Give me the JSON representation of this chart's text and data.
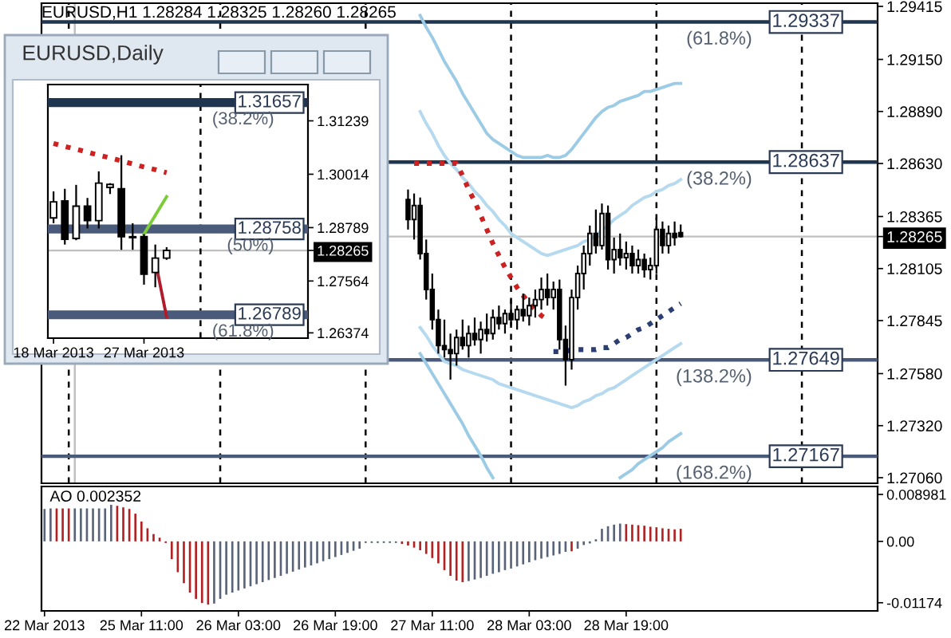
{
  "chart_data": [
    {
      "type": "candlestick",
      "title": "EURUSD,H1 1.28284 1.28325 1.28260 1.28265",
      "tick_labels": "y",
      "ylim": [
        1.27032,
        1.29431
      ],
      "yticks": [
        1.29415,
        {
          "value": 1.2915,
          "label": "1.29150"
        },
        {
          "value": 1.2889,
          "label": "1.28890"
        },
        {
          "value": 1.2863,
          "label": "1.28630"
        },
        1.28365,
        1.28265,
        1.28105,
        1.27845,
        {
          "value": 1.2758,
          "label": "1.27580"
        },
        {
          "value": 1.2732,
          "label": "1.27320"
        },
        {
          "value": 1.2706,
          "label": "1.27060"
        }
      ],
      "categories": [
        null,
        null,
        null,
        null,
        null,
        null,
        null,
        null,
        null,
        null,
        null,
        null,
        null,
        null,
        null,
        null,
        null,
        null,
        null,
        null,
        null,
        null,
        null,
        null,
        null,
        null,
        null,
        null,
        null,
        null,
        null,
        null,
        null,
        null,
        null,
        null,
        null,
        null,
        null,
        null,
        null,
        null,
        null,
        null,
        null,
        null,
        null,
        null,
        null,
        null,
        null,
        null,
        null,
        null,
        null,
        null,
        null,
        null,
        null,
        null,
        null,
        null,
        null,
        null,
        null,
        null,
        null,
        null,
        null,
        null,
        null,
        null,
        null,
        null,
        null,
        null,
        null,
        null,
        null,
        null,
        null,
        null,
        null,
        null,
        null,
        null,
        null,
        null,
        null,
        null,
        null,
        null,
        null,
        null,
        null,
        null,
        null,
        null,
        null,
        null,
        null,
        null,
        null,
        null,
        null,
        null,
        null,
        null,
        null,
        null,
        null,
        null,
        null,
        null,
        null,
        null,
        null,
        null,
        null,
        null,
        null,
        null,
        null,
        null,
        null,
        null,
        null,
        null,
        null,
        null,
        null,
        null,
        null,
        null,
        null,
        null,
        null,
        null
      ],
      "ohlc": [
        null,
        null,
        null,
        null,
        null,
        null,
        null,
        null,
        null,
        null,
        null,
        null,
        null,
        null,
        null,
        null,
        null,
        null,
        null,
        null,
        null,
        null,
        null,
        null,
        null,
        null,
        null,
        null,
        null,
        null,
        null,
        null,
        null,
        null,
        null,
        null,
        null,
        null,
        null,
        null,
        null,
        null,
        null,
        null,
        null,
        null,
        null,
        null,
        null,
        null,
        null,
        null,
        null,
        null,
        null,
        null,
        null,
        null,
        null,
        null,
        [
          1.2845,
          1.285,
          1.283,
          1.2835
        ],
        [
          1.2835,
          1.2848,
          1.2825,
          1.2842
        ],
        [
          1.2842,
          1.2846,
          1.2815,
          1.2818
        ],
        [
          1.2818,
          1.2825,
          1.2795,
          1.28
        ],
        [
          1.28,
          1.2808,
          1.278,
          1.2785
        ],
        [
          1.2785,
          1.279,
          1.2768,
          1.2772
        ],
        [
          1.2772,
          1.2785,
          1.2766,
          1.277
        ],
        [
          1.277,
          1.2778,
          1.2755,
          1.2768
        ],
        [
          1.2768,
          1.278,
          1.2762,
          1.2776
        ],
        [
          1.2776,
          1.2785,
          1.277,
          1.2772
        ],
        [
          1.2772,
          1.2782,
          1.2766,
          1.2778
        ],
        [
          1.2778,
          1.2786,
          1.2772,
          1.2775
        ],
        [
          1.2775,
          1.2784,
          1.2768,
          1.278
        ],
        [
          1.278,
          1.2788,
          1.2774,
          1.2778
        ],
        [
          1.2778,
          1.279,
          1.2775,
          1.2786
        ],
        [
          1.2786,
          1.2792,
          1.278,
          1.2783
        ],
        [
          1.2783,
          1.279,
          1.2778,
          1.2788
        ],
        [
          1.2788,
          1.2795,
          1.2782,
          1.2785
        ],
        [
          1.2785,
          1.2792,
          1.278,
          1.279
        ],
        [
          1.279,
          1.2798,
          1.2784,
          1.2787
        ],
        [
          1.2787,
          1.2796,
          1.2782,
          1.2792
        ],
        [
          1.2792,
          1.28,
          1.2786,
          1.2795
        ],
        [
          1.2795,
          1.2806,
          1.279,
          1.28
        ],
        [
          1.28,
          1.2808,
          1.2792,
          1.2796
        ],
        [
          1.2796,
          1.2804,
          1.279,
          1.28
        ],
        [
          1.28,
          1.2805,
          1.277,
          1.2775
        ],
        [
          1.2775,
          1.2782,
          1.2752,
          1.2765
        ],
        [
          1.2765,
          1.28,
          1.276,
          1.2796
        ],
        [
          1.2796,
          1.2812,
          1.279,
          1.2808
        ],
        [
          1.2808,
          1.2822,
          1.28,
          1.2818
        ],
        [
          1.2818,
          1.2832,
          1.2812,
          1.2828
        ],
        [
          1.2828,
          1.284,
          1.2818,
          1.2822
        ],
        [
          1.2822,
          1.2843,
          1.282,
          1.2838
        ],
        [
          1.2838,
          1.2842,
          1.281,
          1.2815
        ],
        [
          1.2815,
          1.2826,
          1.2808,
          1.282
        ],
        [
          1.282,
          1.2828,
          1.2812,
          1.2816
        ],
        [
          1.2816,
          1.2824,
          1.281,
          1.2818
        ],
        [
          1.2818,
          1.2822,
          1.2808,
          1.2812
        ],
        [
          1.2812,
          1.282,
          1.2808,
          1.2815
        ],
        [
          1.2815,
          1.2818,
          1.2806,
          1.281
        ],
        [
          1.281,
          1.2816,
          1.2805,
          1.2812
        ],
        [
          1.2812,
          1.2836,
          1.2808,
          1.283
        ],
        [
          1.283,
          1.2834,
          1.2818,
          1.2822
        ],
        [
          1.2822,
          1.2832,
          1.2818,
          1.2828
        ],
        [
          1.2828,
          1.2834,
          1.2822,
          1.2826
        ],
        [
          1.28284,
          1.28325,
          1.2826,
          1.28265
        ],
        null,
        null,
        null,
        null,
        null,
        null,
        null,
        null,
        null,
        null,
        null,
        null,
        null,
        null,
        null,
        null,
        null,
        null,
        null,
        null,
        null,
        null,
        null,
        null,
        null,
        null,
        null,
        null,
        null,
        null,
        null,
        null
      ],
      "series": [
        {
          "type": "line",
          "color": "#9ccbe6",
          "line_style": "solid",
          "values": [
            null,
            null,
            null,
            null,
            null,
            null,
            null,
            null,
            null,
            null,
            null,
            null,
            null,
            null,
            null,
            null,
            null,
            null,
            null,
            null,
            null,
            null,
            null,
            null,
            null,
            null,
            null,
            null,
            null,
            null,
            null,
            null,
            null,
            null,
            null,
            null,
            null,
            null,
            null,
            null,
            null,
            null,
            null,
            null,
            null,
            null,
            null,
            null,
            null,
            null,
            null,
            null,
            null,
            null,
            null,
            null,
            null,
            null,
            null,
            null,
            null,
            null,
            1.2937,
            1.2931,
            1.2926,
            1.292,
            1.2914,
            1.2909,
            1.2904,
            1.2898,
            1.2893,
            1.2888,
            1.2883,
            1.2878,
            1.2875,
            1.2873,
            1.2871,
            1.2869,
            1.2867,
            1.2866,
            1.2866,
            1.2866,
            1.2866,
            1.2867,
            1.2866,
            1.2866,
            1.2867,
            1.287,
            1.2874,
            1.2878,
            1.2882,
            1.2886,
            1.2889,
            1.2891,
            1.2892,
            1.2894,
            1.2895,
            1.2896,
            1.2897,
            1.2899,
            1.2899,
            1.29,
            1.2901,
            1.2902,
            1.2903,
            1.2903,
            null,
            null,
            null,
            null,
            null,
            null,
            null,
            null,
            null,
            null,
            null,
            null,
            null,
            null,
            null,
            null,
            null,
            null,
            null,
            null,
            null,
            null,
            null,
            null,
            null,
            null,
            null,
            null,
            null,
            null,
            null,
            null
          ]
        },
        {
          "type": "line",
          "color": "#b5d9ee",
          "line_style": "solid",
          "values": [
            null,
            null,
            null,
            null,
            null,
            null,
            null,
            null,
            null,
            null,
            null,
            null,
            null,
            null,
            null,
            null,
            null,
            null,
            null,
            null,
            null,
            null,
            null,
            null,
            null,
            null,
            null,
            null,
            null,
            null,
            null,
            null,
            null,
            null,
            null,
            null,
            null,
            null,
            null,
            null,
            null,
            null,
            null,
            null,
            null,
            null,
            null,
            null,
            null,
            null,
            null,
            null,
            null,
            null,
            null,
            null,
            null,
            null,
            null,
            null,
            null,
            null,
            1.2889,
            1.2883,
            1.2878,
            1.2872,
            1.2867,
            1.2863,
            1.286,
            1.2856,
            1.2853,
            1.2849,
            1.2846,
            1.2842,
            1.2839,
            1.2835,
            1.2832,
            1.2828,
            1.2826,
            1.2824,
            1.2822,
            1.282,
            1.2818,
            1.2817,
            1.2818,
            1.2819,
            1.282,
            1.2821,
            1.2822,
            1.2824,
            1.2825,
            1.2827,
            1.283,
            1.2832,
            1.2835,
            1.2837,
            1.2839,
            1.2842,
            1.2844,
            1.2846,
            1.2847,
            1.2849,
            1.285,
            1.2852,
            1.2853,
            1.2855,
            null,
            null,
            null,
            null,
            null,
            null,
            null,
            null,
            null,
            null,
            null,
            null,
            null,
            null,
            null,
            null,
            null,
            null,
            null,
            null,
            null,
            null,
            null,
            null,
            null,
            null,
            null,
            null,
            null,
            null,
            null,
            null
          ]
        },
        {
          "type": "line",
          "color": "#b5d9ee",
          "line_style": "solid",
          "values": [
            null,
            null,
            null,
            null,
            null,
            null,
            null,
            null,
            null,
            null,
            null,
            null,
            null,
            null,
            null,
            null,
            null,
            null,
            null,
            null,
            null,
            null,
            null,
            null,
            null,
            null,
            null,
            null,
            null,
            null,
            null,
            null,
            null,
            null,
            null,
            null,
            null,
            null,
            null,
            null,
            null,
            null,
            null,
            null,
            null,
            null,
            null,
            null,
            null,
            null,
            null,
            null,
            null,
            null,
            null,
            null,
            null,
            null,
            null,
            null,
            null,
            null,
            1.2781,
            1.2777,
            1.2772,
            1.2768,
            1.2764,
            1.2763,
            1.2762,
            1.276,
            1.2759,
            1.2758,
            1.2757,
            1.2756,
            1.2755,
            1.2753,
            1.2752,
            1.2751,
            1.275,
            1.2749,
            1.2748,
            1.2747,
            1.2746,
            1.2745,
            1.2744,
            1.2743,
            1.2742,
            1.2741,
            1.2742,
            1.2744,
            1.2745,
            1.2747,
            1.2748,
            1.275,
            1.2751,
            1.2753,
            1.2755,
            1.2757,
            1.2759,
            1.2761,
            1.2763,
            1.2765,
            1.2767,
            1.2769,
            1.2771,
            1.2773,
            null,
            null,
            null,
            null,
            null,
            null,
            null,
            null,
            null,
            null,
            null,
            null,
            null,
            null,
            null,
            null,
            null,
            null,
            null,
            null,
            null,
            null,
            null,
            null,
            null,
            null,
            null,
            null,
            null,
            null,
            null,
            null
          ]
        },
        {
          "type": "line",
          "color": "#9ccbe6",
          "line_style": "solid",
          "values": [
            null,
            null,
            null,
            null,
            null,
            null,
            null,
            null,
            null,
            null,
            null,
            null,
            null,
            null,
            null,
            null,
            null,
            null,
            null,
            null,
            null,
            null,
            null,
            null,
            null,
            null,
            null,
            null,
            null,
            null,
            null,
            null,
            null,
            null,
            null,
            null,
            null,
            null,
            null,
            null,
            null,
            null,
            null,
            null,
            null,
            null,
            null,
            null,
            null,
            null,
            null,
            null,
            null,
            null,
            null,
            null,
            null,
            null,
            null,
            null,
            null,
            null,
            1.2768,
            1.2763,
            1.2758,
            1.2753,
            1.2748,
            1.2743,
            1.2738,
            1.2733,
            1.2727,
            1.2722,
            1.2717,
            1.2711,
            1.2706,
            null,
            null,
            null,
            null,
            null,
            null,
            null,
            null,
            null,
            null,
            null,
            null,
            null,
            null,
            null,
            null,
            null,
            null,
            null,
            null,
            1.2706,
            1.2708,
            1.271,
            1.2713,
            1.2715,
            1.2717,
            1.2719,
            1.2721,
            1.2724,
            1.2726,
            1.2728,
            null,
            null,
            null,
            null,
            null,
            null,
            null,
            null,
            null,
            null,
            null,
            null,
            null,
            null,
            null,
            null,
            null,
            null,
            null,
            null,
            null,
            null,
            null,
            null,
            null,
            null,
            null,
            null,
            null,
            null,
            null,
            null
          ]
        },
        {
          "type": "line",
          "color": "#cc2222",
          "line_style": "dotted",
          "values": [
            null,
            null,
            null,
            null,
            null,
            null,
            null,
            null,
            null,
            null,
            null,
            null,
            null,
            null,
            null,
            null,
            null,
            null,
            null,
            null,
            null,
            null,
            null,
            null,
            null,
            null,
            null,
            null,
            null,
            null,
            null,
            null,
            null,
            null,
            null,
            null,
            null,
            null,
            null,
            null,
            null,
            null,
            null,
            null,
            null,
            null,
            null,
            null,
            null,
            null,
            null,
            null,
            null,
            null,
            null,
            null,
            null,
            null,
            null,
            null,
            null,
            1.2863,
            1.2863,
            1.2863,
            1.2863,
            1.2863,
            1.2863,
            1.2863,
            1.2863,
            1.2857,
            1.285,
            1.2844,
            1.2837,
            1.283,
            1.2823,
            1.2817,
            1.2811,
            1.2806,
            1.2801,
            1.2797,
            1.2793,
            1.279,
            1.2787,
            1.2785,
            null,
            null,
            null,
            null,
            null,
            null,
            null,
            null,
            null,
            null,
            null,
            null,
            null,
            null,
            null,
            null,
            null,
            null,
            null,
            null,
            null,
            null,
            null,
            null,
            null,
            null,
            null,
            null,
            null,
            null,
            null,
            null,
            null,
            null,
            null,
            null,
            null,
            null,
            null,
            null,
            null,
            null,
            null,
            null,
            null,
            null,
            null,
            null,
            null,
            null,
            null,
            null,
            null,
            null
          ]
        },
        {
          "type": "line",
          "color": "#2b3f73",
          "line_style": "dotted",
          "values": [
            null,
            null,
            null,
            null,
            null,
            null,
            null,
            null,
            null,
            null,
            null,
            null,
            null,
            null,
            null,
            null,
            null,
            null,
            null,
            null,
            null,
            null,
            null,
            null,
            null,
            null,
            null,
            null,
            null,
            null,
            null,
            null,
            null,
            null,
            null,
            null,
            null,
            null,
            null,
            null,
            null,
            null,
            null,
            null,
            null,
            null,
            null,
            null,
            null,
            null,
            null,
            null,
            null,
            null,
            null,
            null,
            null,
            null,
            null,
            null,
            null,
            null,
            null,
            null,
            null,
            null,
            null,
            null,
            null,
            null,
            null,
            null,
            null,
            null,
            null,
            null,
            null,
            null,
            null,
            null,
            null,
            null,
            null,
            null,
            1.2769,
            1.2769,
            1.2769,
            1.277,
            1.277,
            1.277,
            1.277,
            1.277,
            1.2771,
            1.2771,
            1.2773,
            1.2775,
            1.2776,
            1.2778,
            1.278,
            1.2781,
            1.2783,
            1.2785,
            1.2787,
            1.2789,
            1.2791,
            1.2793,
            null,
            null,
            null,
            null,
            null,
            null,
            null,
            null,
            null,
            null,
            null,
            null,
            null,
            null,
            null,
            null,
            null,
            null,
            null,
            null,
            null,
            null,
            null,
            null,
            null,
            null,
            null,
            null,
            null,
            null,
            null,
            null
          ]
        }
      ],
      "ref_lines": [
        {
          "axis": "y",
          "value": 1.29337,
          "label": "1.29337",
          "color": "#1f3550"
        },
        {
          "axis": "y",
          "value": 1.28637,
          "label": "1.28637",
          "color": "#1f3550"
        },
        {
          "axis": "y",
          "value": 1.27649,
          "label": "1.27649",
          "color": "#4a5a7a"
        },
        {
          "axis": "y",
          "value": 1.27167,
          "label": "1.27167",
          "color": "#4a5a7a"
        },
        {
          "axis": "y",
          "value": 1.28265,
          "color": "#c0c0c0"
        }
      ],
      "annotations": [
        {
          "text": "(61.8%)",
          "y": 1.29337
        },
        {
          "text": "(38.2%)",
          "y": 1.28637
        },
        {
          "text": "(138.2%)",
          "y": 1.27649
        },
        {
          "text": "(168.2%)",
          "y": 1.27167
        }
      ]
    },
    {
      "type": "candlestick",
      "title": "EURUSD,Daily",
      "ylim": [
        1.26253,
        1.32072
      ],
      "yticks": [
        1.31239,
        1.30014,
        1.28789,
        1.27564,
        1.28265,
        1.26374
      ],
      "categories": [
        "18 Mar 2013",
        null,
        null,
        null,
        null,
        null,
        null,
        null,
        "27 Mar 2013",
        null,
        null,
        null,
        null,
        null,
        null,
        null,
        null,
        null,
        null,
        null,
        null,
        null,
        null
      ],
      "ohlc": [
        [
          1.2901,
          1.2962,
          1.2889,
          1.2938
        ],
        [
          1.294,
          1.2968,
          1.284,
          1.2852
        ],
        [
          1.2854,
          1.2977,
          1.285,
          1.2928
        ],
        [
          1.2928,
          1.2947,
          1.2877,
          1.2895
        ],
        [
          1.2895,
          1.3008,
          1.2877,
          1.2981
        ],
        [
          1.2971,
          1.2981,
          1.2956,
          1.2978
        ],
        [
          1.2968,
          1.3045,
          1.2828,
          1.2858
        ],
        [
          1.2858,
          1.2889,
          1.2828,
          1.2856
        ],
        [
          1.2858,
          1.2864,
          1.2748,
          1.2772
        ],
        [
          1.2776,
          1.284,
          1.2742,
          1.2809
        ],
        [
          1.2809,
          1.2834,
          1.2805,
          1.28265
        ],
        null,
        null,
        null,
        null,
        null,
        null,
        null,
        null,
        null,
        null,
        null,
        null
      ],
      "series": [
        {
          "type": "line",
          "color": "#cc2222",
          "line_style": "dotted",
          "values": [
            1.3072,
            1.3065,
            1.3059,
            1.3052,
            1.3045,
            1.3039,
            1.3032,
            1.3025,
            1.3018,
            1.3012,
            1.3005,
            null,
            null,
            null,
            null,
            null,
            null,
            null,
            null,
            null,
            null,
            null,
            null
          ]
        },
        {
          "type": "line",
          "color": "#7ccc3a",
          "line_style": "solid",
          "values": [
            null,
            null,
            null,
            null,
            null,
            null,
            null,
            null,
            1.2864,
            1.2907,
            1.295,
            null,
            null,
            null,
            null,
            null,
            null,
            null,
            null,
            null,
            null,
            null,
            null
          ]
        },
        {
          "type": "line",
          "color": "#b01c2c",
          "line_style": "solid",
          "values": [
            null,
            null,
            null,
            null,
            null,
            null,
            null,
            null,
            null,
            1.2803,
            1.2674,
            null,
            null,
            null,
            null,
            null,
            null,
            null,
            null,
            null,
            null,
            null,
            null
          ]
        }
      ],
      "ref_lines": [
        {
          "axis": "y",
          "value": 1.31657,
          "label": "1.31657",
          "color": "#1f3550"
        },
        {
          "axis": "y",
          "value": 1.28758,
          "label": "1.28758",
          "color": "#4a5a7a"
        },
        {
          "axis": "y",
          "value": 1.26789,
          "label": "1.26789",
          "color": "#4a5a7a"
        },
        {
          "axis": "y",
          "value": 1.28265,
          "color": "#c0c0c0"
        }
      ],
      "annotations": [
        {
          "text": "(38.2%)",
          "y": 1.31657
        },
        {
          "text": "(50%)",
          "y": 1.28758
        },
        {
          "text": "(61.8%)",
          "y": 1.26789
        }
      ]
    },
    {
      "type": "bar",
      "title": "AO 0.002352",
      "ylim": [
        -0.0133,
        0.0105
      ],
      "yticks": [
        0.008981,
        {
          "value": 0,
          "label": "0.00"
        },
        {
          "value": -0.01174,
          "label": "-0.01174"
        }
      ],
      "categories": [
        "22 Mar 2013",
        null,
        null,
        null,
        null,
        null,
        null,
        null,
        null,
        null,
        null,
        null,
        null,
        null,
        null,
        null,
        "25 Mar 11:00",
        null,
        null,
        null,
        null,
        null,
        null,
        null,
        null,
        null,
        null,
        null,
        null,
        null,
        null,
        null,
        "26 Mar 03:00",
        null,
        null,
        null,
        null,
        null,
        null,
        null,
        null,
        null,
        null,
        null,
        null,
        null,
        null,
        null,
        "26 Mar 19:00",
        null,
        null,
        null,
        null,
        null,
        null,
        null,
        null,
        null,
        null,
        null,
        null,
        null,
        null,
        null,
        "27 Mar 11:00",
        null,
        null,
        null,
        null,
        null,
        null,
        null,
        null,
        null,
        null,
        null,
        null,
        null,
        null,
        null,
        "28 Mar 03:00",
        null,
        null,
        null,
        null,
        null,
        null,
        null,
        null,
        null,
        null,
        null,
        null,
        null,
        null,
        null,
        "28 Mar 19:00",
        null,
        null,
        null,
        null,
        null,
        null,
        null,
        null,
        null,
        null,
        null,
        null,
        null,
        null,
        null,
        null,
        null,
        null,
        null,
        null,
        null,
        null,
        null,
        null,
        null,
        null,
        null,
        null,
        null,
        null,
        null,
        null,
        null,
        null,
        null,
        null,
        null,
        null,
        null,
        null,
        null
      ],
      "values": [
        0.0062,
        0.0063,
        0.0063,
        0.0063,
        0.0063,
        0.0063,
        0.0063,
        0.0063,
        0.0063,
        0.0063,
        0.0063,
        0.007,
        0.0068,
        0.0065,
        0.0062,
        0.0053,
        0.0038,
        0.0025,
        0.0014,
        0.0007,
        -0.0003,
        -0.0034,
        -0.0059,
        -0.008,
        -0.0098,
        -0.011,
        -0.0118,
        -0.0121,
        -0.0119,
        -0.011,
        -0.0102,
        -0.0098,
        -0.0094,
        -0.009,
        -0.0086,
        -0.0082,
        -0.0078,
        -0.0074,
        -0.007,
        -0.0066,
        -0.0062,
        -0.0058,
        -0.0054,
        -0.005,
        -0.0046,
        -0.0042,
        -0.0038,
        -0.0034,
        -0.003,
        -0.0026,
        -0.0022,
        -0.0018,
        -0.0014,
        -0.0003,
        -0.0003,
        -0.0003,
        -0.0003,
        -0.0003,
        -0.0003,
        -0.0005,
        -0.0008,
        -0.0012,
        -0.0017,
        -0.0024,
        -0.0032,
        -0.0042,
        -0.0055,
        -0.0066,
        -0.0075,
        -0.0078,
        -0.0076,
        -0.0073,
        -0.007,
        -0.0066,
        -0.0062,
        -0.0059,
        -0.0055,
        -0.0052,
        -0.0048,
        -0.0044,
        -0.004,
        -0.0036,
        -0.0033,
        -0.003,
        -0.0027,
        -0.0024,
        -0.002,
        -0.0019,
        -0.0014,
        -0.0007,
        -0.0004,
        0.0004,
        0.0024,
        0.0029,
        0.0032,
        0.0034,
        0.0033,
        0.0032,
        0.0031,
        0.003,
        0.0028,
        0.0027,
        0.0025,
        0.0024,
        0.0023,
        0.0024,
        null,
        null,
        null,
        null,
        null,
        null,
        null,
        null,
        null,
        null,
        null,
        null,
        null,
        null,
        null,
        null,
        null,
        null,
        null,
        null,
        null,
        null,
        null,
        null,
        null,
        null,
        null,
        null,
        null,
        null,
        null,
        null
      ],
      "colors": [
        "#5a6478",
        "#5a6478",
        "#b22222",
        "#b22222",
        "#b22222",
        "#5a6478",
        "#5a6478",
        "#5a6478",
        "#5a6478",
        "#5a6478",
        "#5a6478",
        "#5a6478",
        "#b22222",
        "#b22222",
        "#b22222",
        "#b22222",
        "#b22222",
        "#b22222",
        "#b22222",
        "#b22222",
        "#b22222",
        "#b22222",
        "#b22222",
        "#b22222",
        "#b22222",
        "#b22222",
        "#b22222",
        "#b22222",
        "#5a6478",
        "#5a6478",
        "#5a6478",
        "#5a6478",
        "#5a6478",
        "#5a6478",
        "#5a6478",
        "#5a6478",
        "#5a6478",
        "#5a6478",
        "#5a6478",
        "#5a6478",
        "#5a6478",
        "#5a6478",
        "#5a6478",
        "#5a6478",
        "#5a6478",
        "#5a6478",
        "#5a6478",
        "#5a6478",
        "#5a6478",
        "#5a6478",
        "#5a6478",
        "#5a6478",
        "#5a6478",
        "#5a6478",
        "#5a6478",
        "#5a6478",
        "#5a6478",
        "#5a6478",
        "#5a6478",
        "#b22222",
        "#b22222",
        "#b22222",
        "#b22222",
        "#b22222",
        "#b22222",
        "#b22222",
        "#b22222",
        "#b22222",
        "#b22222",
        "#b22222",
        "#5a6478",
        "#5a6478",
        "#5a6478",
        "#5a6478",
        "#5a6478",
        "#5a6478",
        "#5a6478",
        "#5a6478",
        "#5a6478",
        "#5a6478",
        "#5a6478",
        "#5a6478",
        "#5a6478",
        "#5a6478",
        "#5a6478",
        "#5a6478",
        "#5a6478",
        "#b22222",
        "#5a6478",
        "#5a6478",
        "#5a6478",
        "#5a6478",
        "#5a6478",
        "#5a6478",
        "#5a6478",
        "#5a6478",
        "#b22222",
        "#b22222",
        "#b22222",
        "#b22222",
        "#b22222",
        "#b22222",
        "#b22222",
        "#b22222",
        "#b22222",
        "#b22222",
        null,
        null,
        null,
        null,
        null,
        null,
        null,
        null,
        null,
        null,
        null,
        null,
        null,
        null,
        null,
        null,
        null,
        null,
        null,
        null,
        null,
        null,
        null,
        null,
        null,
        null,
        null,
        null,
        null,
        null,
        null,
        null
      ]
    }
  ]
}
